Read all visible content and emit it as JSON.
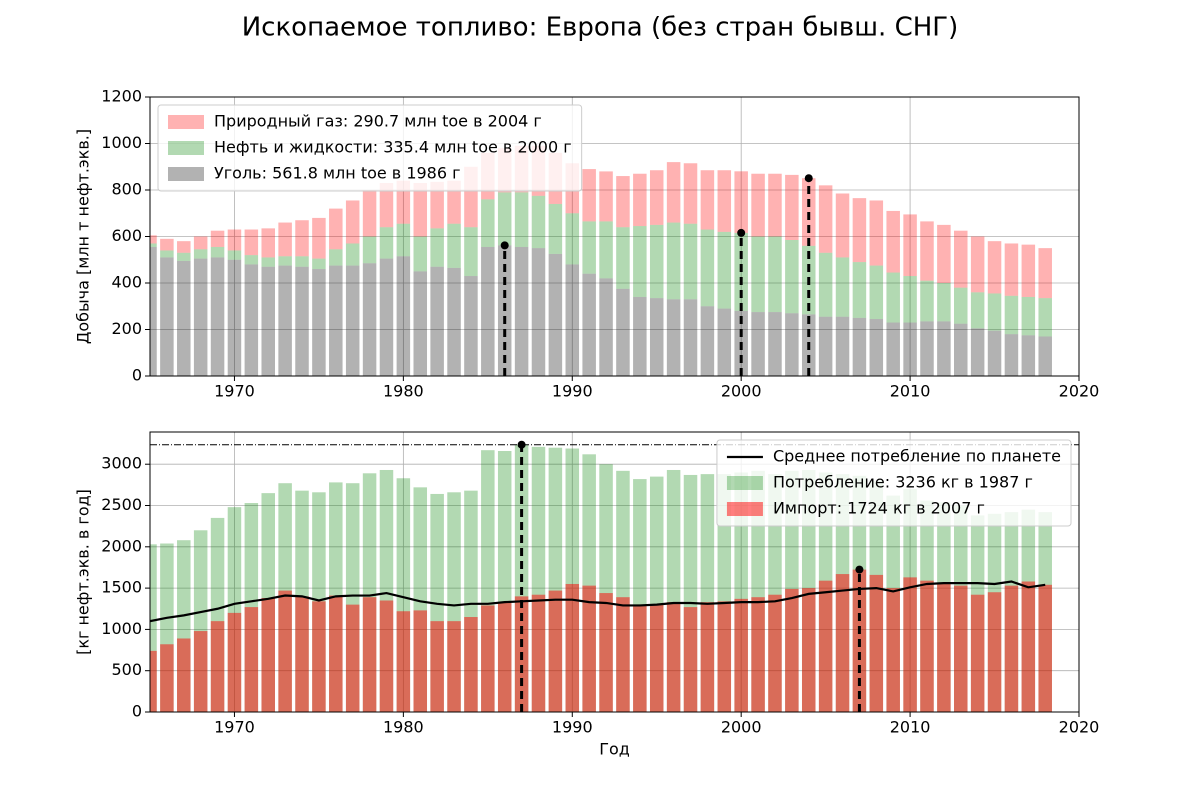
{
  "chart_data": [
    {
      "type": "bar",
      "stacked": true,
      "title": "Ископаемое топливо: Европа (без стран бывш. СНГ)",
      "ylabel": "Добыча [млн т нефт.экв.]",
      "legend": "upper left",
      "grid": true,
      "xlim": [
        1965,
        2020
      ],
      "xticks": [
        1970,
        1980,
        1990,
        2000,
        2010,
        2020
      ],
      "ylim": [
        0,
        1200
      ],
      "yticks": [
        0,
        200,
        400,
        600,
        800,
        1000,
        1200
      ],
      "x": [
        1965,
        1966,
        1967,
        1968,
        1969,
        1970,
        1971,
        1972,
        1973,
        1974,
        1975,
        1976,
        1977,
        1978,
        1979,
        1980,
        1981,
        1982,
        1983,
        1984,
        1985,
        1986,
        1987,
        1988,
        1989,
        1990,
        1991,
        1992,
        1993,
        1994,
        1995,
        1996,
        1997,
        1998,
        1999,
        2000,
        2001,
        2002,
        2003,
        2004,
        2005,
        2006,
        2007,
        2008,
        2009,
        2010,
        2011,
        2012,
        2013,
        2014,
        2015,
        2016,
        2017,
        2018
      ],
      "series": [
        {
          "name": "Природный газ: 290.7 млн toe в 2004 г",
          "color": "#ff0000",
          "alpha": 0.3,
          "mark_peak": true,
          "values": [
            35,
            50,
            50,
            55,
            70,
            90,
            110,
            125,
            145,
            155,
            175,
            175,
            185,
            200,
            190,
            185,
            230,
            200,
            185,
            260,
            200,
            190,
            200,
            215,
            220,
            215,
            225,
            215,
            220,
            225,
            235,
            260,
            260,
            255,
            265,
            265,
            270,
            270,
            280,
            290.7,
            290,
            275,
            275,
            280,
            265,
            265,
            255,
            250,
            245,
            240,
            225,
            225,
            225,
            215
          ]
        },
        {
          "name": "Нефть и жидкости: 335.4 млн toe в 2000 г",
          "color": "#008000",
          "alpha": 0.3,
          "mark_peak": true,
          "values": [
            15,
            30,
            35,
            40,
            45,
            40,
            40,
            40,
            40,
            45,
            45,
            70,
            95,
            115,
            135,
            140,
            150,
            165,
            190,
            210,
            205,
            228,
            235,
            225,
            215,
            220,
            225,
            245,
            265,
            305,
            315,
            330,
            325,
            330,
            330,
            335.4,
            325,
            325,
            315,
            295,
            275,
            255,
            240,
            230,
            215,
            200,
            175,
            165,
            155,
            155,
            160,
            165,
            165,
            165
          ]
        },
        {
          "name": "Уголь: 561.8 млн toe в 1986 г",
          "color": "#000000",
          "alpha": 0.3,
          "mark_peak": true,
          "values": [
            555,
            510,
            495,
            505,
            510,
            500,
            480,
            470,
            475,
            470,
            460,
            475,
            475,
            485,
            505,
            515,
            450,
            470,
            465,
            430,
            555,
            561.8,
            555,
            550,
            525,
            480,
            440,
            420,
            375,
            340,
            335,
            330,
            330,
            300,
            290,
            280,
            275,
            275,
            270,
            265,
            255,
            255,
            250,
            245,
            230,
            230,
            235,
            235,
            225,
            205,
            195,
            180,
            175,
            170
          ]
        }
      ]
    },
    {
      "type": "bar",
      "stacked": false,
      "ylabel": "[кг нефт.экв. в год]",
      "xlabel": "Год",
      "legend": "upper right",
      "grid": true,
      "xlim": [
        1965,
        2020
      ],
      "xticks": [
        1970,
        1980,
        1990,
        2000,
        2010,
        2020
      ],
      "ylim": [
        0,
        3390
      ],
      "yticks": [
        0,
        500,
        1000,
        1500,
        2000,
        2500,
        3000
      ],
      "x": [
        1965,
        1966,
        1967,
        1968,
        1969,
        1970,
        1971,
        1972,
        1973,
        1974,
        1975,
        1976,
        1977,
        1978,
        1979,
        1980,
        1981,
        1982,
        1983,
        1984,
        1985,
        1986,
        1987,
        1988,
        1989,
        1990,
        1991,
        1992,
        1993,
        1994,
        1995,
        1996,
        1997,
        1998,
        1999,
        2000,
        2001,
        2002,
        2003,
        2004,
        2005,
        2006,
        2007,
        2008,
        2009,
        2010,
        2011,
        2012,
        2013,
        2014,
        2015,
        2016,
        2017,
        2018
      ],
      "series": [
        {
          "name": "Среднее потребление по планете",
          "type": "line",
          "color": "#000000",
          "values": [
            1100,
            1140,
            1170,
            1210,
            1250,
            1310,
            1340,
            1370,
            1410,
            1400,
            1350,
            1400,
            1410,
            1410,
            1440,
            1390,
            1340,
            1310,
            1290,
            1310,
            1310,
            1330,
            1340,
            1350,
            1360,
            1360,
            1330,
            1320,
            1290,
            1290,
            1300,
            1320,
            1320,
            1310,
            1320,
            1330,
            1330,
            1340,
            1380,
            1430,
            1450,
            1470,
            1490,
            1500,
            1460,
            1510,
            1550,
            1560,
            1560,
            1560,
            1550,
            1580,
            1510,
            1540
          ]
        },
        {
          "name": "Потребление: 3236 кг в 1987 г",
          "color": "#008000",
          "alpha": 0.3,
          "mark_peak": true,
          "peak_hline": true,
          "values": [
            2030,
            2040,
            2080,
            2200,
            2350,
            2480,
            2530,
            2650,
            2770,
            2680,
            2660,
            2780,
            2770,
            2890,
            2930,
            2830,
            2720,
            2640,
            2660,
            2680,
            3170,
            3160,
            3236,
            3210,
            3200,
            3190,
            3120,
            3000,
            2920,
            2820,
            2850,
            2930,
            2870,
            2880,
            2880,
            2900,
            2920,
            2880,
            2920,
            2930,
            2900,
            2880,
            2860,
            2800,
            2620,
            2700,
            2560,
            2540,
            2500,
            2380,
            2400,
            2420,
            2450,
            2420
          ]
        },
        {
          "name": "Импорт: 1724 кг в 2007 г",
          "color": "#ff0000",
          "alpha": 0.5,
          "mark_peak": true,
          "values": [
            740,
            820,
            890,
            980,
            1100,
            1200,
            1270,
            1380,
            1470,
            1400,
            1340,
            1410,
            1300,
            1390,
            1350,
            1220,
            1230,
            1100,
            1100,
            1150,
            1290,
            1320,
            1400,
            1420,
            1470,
            1550,
            1530,
            1440,
            1390,
            1300,
            1300,
            1330,
            1270,
            1330,
            1340,
            1370,
            1390,
            1420,
            1490,
            1500,
            1590,
            1670,
            1724,
            1660,
            1500,
            1630,
            1590,
            1560,
            1530,
            1420,
            1450,
            1530,
            1580,
            1540
          ]
        }
      ]
    }
  ]
}
